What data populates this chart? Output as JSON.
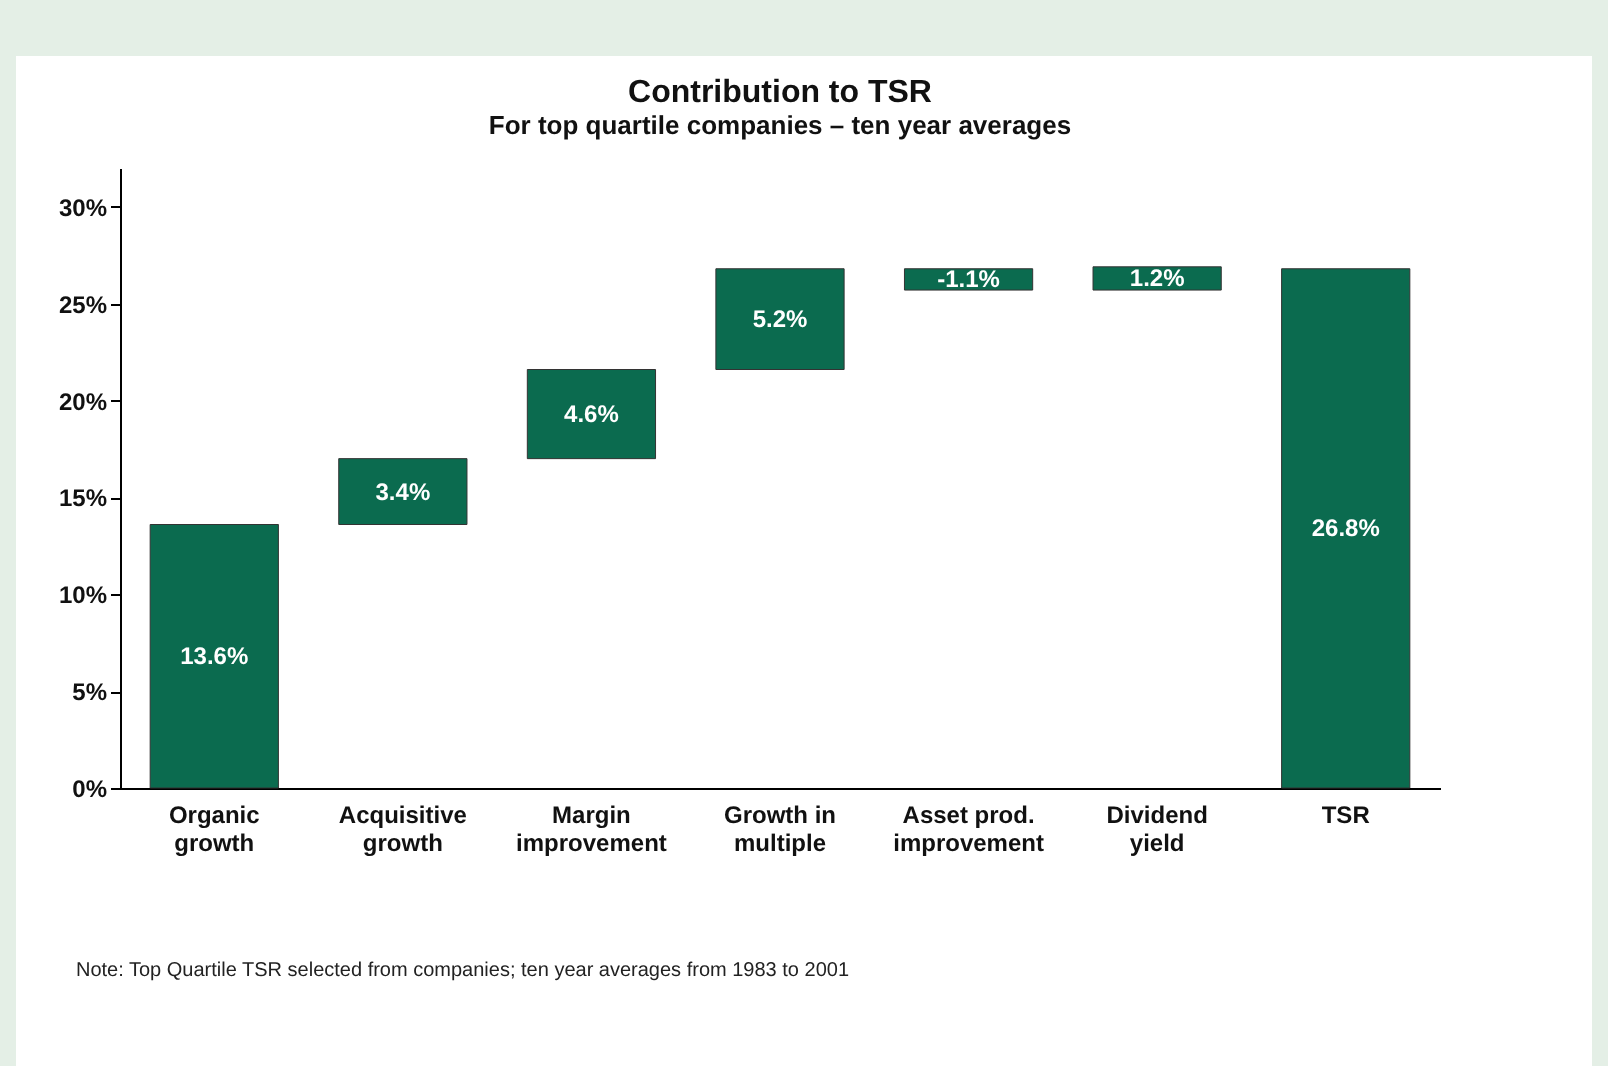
{
  "chart_data": {
    "type": "bar",
    "title": "Contribution to TSR",
    "subtitle": "For top quartile companies – ten year averages",
    "categories": [
      "Organic growth",
      "Acquisitive growth",
      "Margin improvement",
      "Growth in multiple",
      "Asset prod. improvement",
      "Dividend yield",
      "TSR"
    ],
    "values": [
      13.6,
      3.4,
      4.6,
      5.2,
      -1.1,
      1.2,
      26.8
    ],
    "base": [
      0,
      13.6,
      17.0,
      21.6,
      26.8,
      25.7,
      0
    ],
    "value_labels": [
      "13.6%",
      "3.4%",
      "4.6%",
      "5.2%",
      "-1.1%",
      "1.2%",
      "26.8%"
    ],
    "color": "#0b6b4f",
    "ylim": [
      0,
      32
    ],
    "yticks": [
      {
        "value": 0,
        "label": "0%"
      },
      {
        "value": 5,
        "label": "5%"
      },
      {
        "value": 10,
        "label": "10%"
      },
      {
        "value": 15,
        "label": "15%"
      },
      {
        "value": 20,
        "label": "20%"
      },
      {
        "value": 25,
        "label": "25%"
      },
      {
        "value": 30,
        "label": "30%"
      }
    ],
    "grid": false,
    "annotations": [
      "Note: Top Quartile TSR selected from companies; ten year averages from 1983 to 2001"
    ]
  }
}
